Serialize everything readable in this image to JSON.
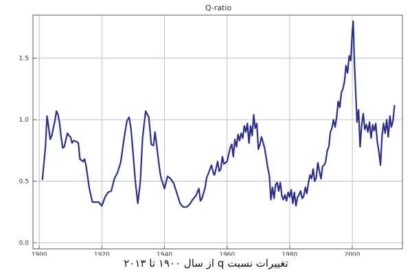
{
  "caption": "تغییرات نسبت q از سال ۱۹۰۰ تا ۲۰۱۳",
  "chart_data": {
    "type": "line",
    "title": "Q-ratio",
    "xlabel": "",
    "ylabel": "",
    "xlim": [
      1898,
      2016
    ],
    "ylim": [
      -0.05,
      1.85
    ],
    "xticks": [
      1900,
      1920,
      1940,
      1960,
      1980,
      2000
    ],
    "yticks": [
      0.0,
      0.5,
      1.0,
      1.5
    ],
    "ytick_labels": [
      "0.0",
      "0.5",
      "1.0",
      "1.5"
    ],
    "grid": true,
    "line_color": "#2a2f8c",
    "series": [
      {
        "x": [
          1901,
          1902,
          1902.5,
          1903,
          1903.5,
          1904,
          1904.5,
          1905,
          1905.5,
          1906,
          1906.5,
          1907,
          1907.5,
          1908,
          1909,
          1909.5,
          1910,
          1910.5,
          1911,
          1912,
          1912.5,
          1913,
          1914,
          1914.5,
          1915,
          1916,
          1917,
          1918,
          1919,
          1920,
          1921,
          1922,
          1923,
          1924,
          1925,
          1926,
          1927,
          1928,
          1928.7,
          1929.3,
          1930,
          1930.7,
          1931.5,
          1932.3,
          1933,
          1934,
          1935,
          1935.8,
          1936.5,
          1937,
          1938,
          1938.6,
          1939,
          1940,
          1941,
          1942,
          1943,
          1944,
          1945,
          1946,
          1947,
          1948,
          1949,
          1950,
          1951,
          1951.5,
          1952,
          1953,
          1953.5,
          1954,
          1955,
          1955.7,
          1956,
          1957,
          1957.5,
          1958,
          1958.5,
          1959,
          1960,
          1961,
          1961.5,
          1962,
          1962.5,
          1963,
          1963.5,
          1964,
          1964.5,
          1965,
          1965.5,
          1966,
          1966.5,
          1967,
          1967.5,
          1968,
          1968.5,
          1969,
          1969.5,
          1970,
          1970.5,
          1971,
          1972,
          1973,
          1973.5,
          1974,
          1974.5,
          1975,
          1975.5,
          1976,
          1976.5,
          1977,
          1977.5,
          1978,
          1978.5,
          1979,
          1979.5,
          1980,
          1980.5,
          1981,
          1981.5,
          1982,
          1982.5,
          1983,
          1983.5,
          1984,
          1984.5,
          1985,
          1985.5,
          1986,
          1986.5,
          1987,
          1987.5,
          1988,
          1988.5,
          1989,
          1989.5,
          1990,
          1990.5,
          1991,
          1991.5,
          1992,
          1992.5,
          1993,
          1993.5,
          1994,
          1994.5,
          1995,
          1995.5,
          1996,
          1996.5,
          1997,
          1997.5,
          1998,
          1998.5,
          1999,
          1999.5,
          2000,
          2000.3,
          2000.7,
          2001,
          2001.5,
          2002,
          2002.5,
          2003,
          2003.5,
          2004,
          2004.5,
          2005,
          2005.5,
          2006,
          2006.5,
          2007,
          2007.5,
          2008,
          2008.5,
          2009,
          2009.5,
          2010,
          2010.5,
          2011,
          2011.5,
          2012,
          2012.5,
          2013,
          2013.5
        ],
        "y": [
          0.51,
          0.78,
          1.03,
          0.94,
          0.84,
          0.87,
          0.93,
          0.99,
          1.07,
          1.04,
          0.97,
          0.86,
          0.77,
          0.78,
          0.89,
          0.87,
          0.86,
          0.81,
          0.83,
          0.82,
          0.81,
          0.68,
          0.66,
          0.68,
          0.62,
          0.44,
          0.33,
          0.33,
          0.33,
          0.3,
          0.37,
          0.41,
          0.42,
          0.52,
          0.57,
          0.65,
          0.83,
          0.99,
          1.02,
          0.93,
          0.72,
          0.5,
          0.32,
          0.5,
          0.85,
          1.07,
          1.02,
          0.8,
          0.79,
          0.9,
          0.69,
          0.57,
          0.52,
          0.44,
          0.54,
          0.52,
          0.48,
          0.4,
          0.32,
          0.29,
          0.29,
          0.31,
          0.35,
          0.38,
          0.44,
          0.34,
          0.36,
          0.45,
          0.53,
          0.56,
          0.63,
          0.56,
          0.55,
          0.66,
          0.58,
          0.6,
          0.7,
          0.64,
          0.66,
          0.77,
          0.8,
          0.7,
          0.84,
          0.78,
          0.88,
          0.83,
          0.89,
          0.85,
          0.95,
          0.9,
          0.97,
          0.81,
          0.95,
          0.87,
          1.04,
          0.93,
          0.97,
          0.76,
          0.8,
          0.86,
          0.77,
          0.61,
          0.55,
          0.35,
          0.45,
          0.36,
          0.47,
          0.49,
          0.42,
          0.49,
          0.38,
          0.35,
          0.39,
          0.34,
          0.41,
          0.37,
          0.43,
          0.32,
          0.41,
          0.3,
          0.37,
          0.39,
          0.42,
          0.36,
          0.38,
          0.45,
          0.4,
          0.49,
          0.55,
          0.52,
          0.6,
          0.5,
          0.53,
          0.65,
          0.58,
          0.52,
          0.62,
          0.63,
          0.66,
          0.75,
          0.78,
          0.9,
          0.93,
          1.0,
          0.94,
          1.02,
          1.15,
          1.1,
          1.22,
          1.25,
          1.31,
          1.44,
          1.38,
          1.52,
          1.48,
          1.72,
          1.8,
          1.45,
          1.28,
          0.98,
          1.08,
          0.78,
          0.96,
          1.05,
          0.92,
          0.96,
          0.9,
          0.98,
          0.85,
          0.96,
          0.91,
          0.97,
          0.82,
          0.74,
          0.63,
          0.87,
          0.97,
          0.89,
          1.0,
          0.86,
          1.03,
          0.94,
          0.99,
          1.12
        ]
      }
    ]
  }
}
